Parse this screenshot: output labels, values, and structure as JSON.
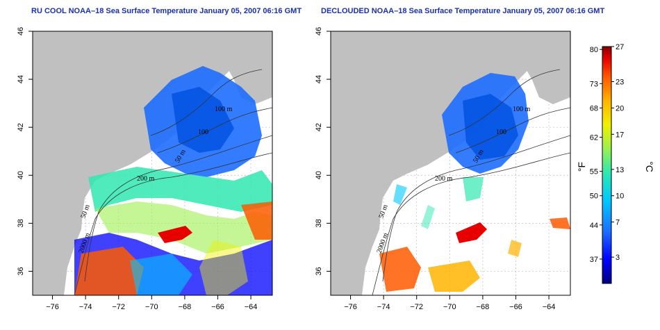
{
  "titles": {
    "left": "RU COOL NOAA–18 Sea Surface Temperature January 05, 2007 06:16 GMT",
    "right": "DECLOUDED NOAA–18 Sea Surface Temperature January 05, 2007 06:16 GMT"
  },
  "axes": {
    "x_ticks": [
      -76,
      -74,
      -72,
      -70,
      -68,
      -66,
      -64
    ],
    "y_ticks": [
      36,
      38,
      40,
      42,
      44,
      46
    ],
    "x_range": [
      -77.2,
      -62.7
    ],
    "y_range": [
      35.0,
      46.0
    ],
    "x_tick_labels": [
      "−76",
      "−74",
      "−72",
      "−70",
      "−68",
      "−66",
      "−64"
    ],
    "y_tick_labels": [
      "36",
      "38",
      "40",
      "42",
      "44",
      "46"
    ]
  },
  "contour_labels": {
    "left": [
      "100 m",
      "100",
      "50 m",
      "200 m",
      "50 m",
      "2000 m"
    ],
    "right": [
      "100 m",
      "100",
      "50 m",
      "200 m",
      "50 m",
      "2000 m"
    ]
  },
  "colorbar": {
    "fahrenheit_labels": [
      "80",
      "73",
      "68",
      "62",
      "55",
      "50",
      "44",
      "37"
    ],
    "celsius_labels": [
      "27",
      "23",
      "20",
      "17",
      "13",
      "10",
      "7",
      "3"
    ],
    "fahrenheit_unit": "°F",
    "celsius_unit": "°C",
    "celsius_range": [
      0,
      27
    ]
  },
  "colors": {
    "land": "#c0c0c0",
    "ocean_nodata": "#ffffff",
    "grid": "#bbbbbb",
    "title": "#1a2fb0"
  }
}
